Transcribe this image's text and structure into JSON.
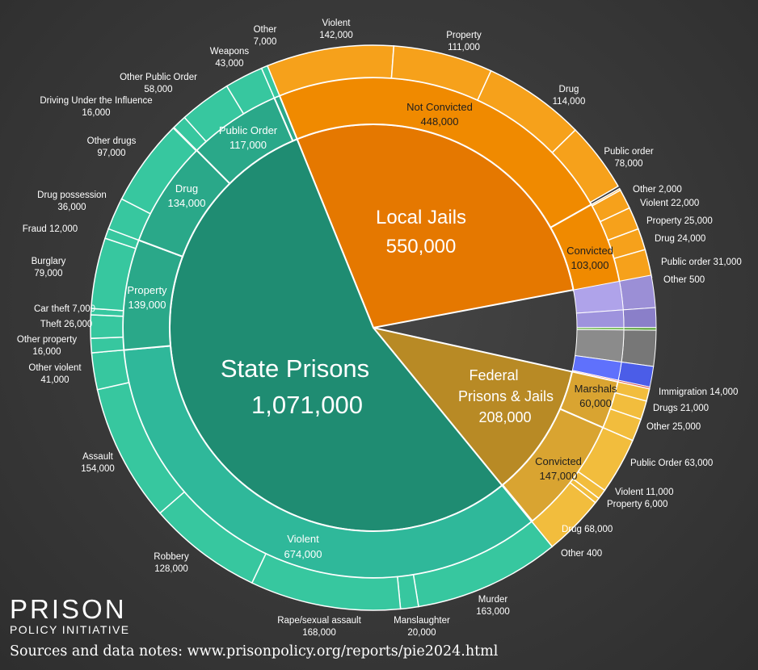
{
  "chart_data": {
    "type": "pie",
    "center": [
      {
        "label": "State Prisons",
        "value": "1,071,000"
      },
      {
        "label": "Local Jails",
        "value": "550,000"
      },
      {
        "label": "Federal Prisons & Jails",
        "value": "208,000"
      }
    ],
    "slices": [
      {
        "name": "State Prisons",
        "display": "1,071,000",
        "value": 1071000,
        "color": "#1f8c72",
        "mid": [
          {
            "label": "Violent",
            "display": "674,000",
            "value": 674000,
            "color": "#2fb89a",
            "outer": [
              {
                "label": "Murder",
                "display": "163,000",
                "value": 163000
              },
              {
                "label": "Manslaughter",
                "display": "20,000",
                "value": 20000
              },
              {
                "label": "Rape/sexual assault",
                "display": "168,000",
                "value": 168000
              },
              {
                "label": "Robbery",
                "display": "128,000",
                "value": 128000
              },
              {
                "label": "Assault",
                "display": "154,000",
                "value": 154000
              },
              {
                "label": "Other violent",
                "display": "41,000",
                "value": 41000
              }
            ]
          },
          {
            "label": "Property",
            "display": "139,000",
            "value": 139000,
            "color": "#2aa889",
            "outer": [
              {
                "label": "Other property",
                "display": "16,000",
                "value": 16000
              },
              {
                "label": "Theft",
                "display": "26,000",
                "value": 26000
              },
              {
                "label": "Car theft",
                "display": "7,000",
                "value": 7000
              },
              {
                "label": "Burglary",
                "display": "79,000",
                "value": 79000
              },
              {
                "label": "Fraud",
                "display": "12,000",
                "value": 12000
              }
            ]
          },
          {
            "label": "Drug",
            "display": "134,000",
            "value": 134000,
            "color": "#2aa889",
            "outer": [
              {
                "label": "Drug possession",
                "display": "36,000",
                "value": 36000
              },
              {
                "label": "Other drugs",
                "display": "97,000",
                "value": 97000
              }
            ]
          },
          {
            "label": "Public Order",
            "display": "117,000",
            "value": 117000,
            "color": "#2aa889",
            "outer": [
              {
                "label": "Driving Under the Influence",
                "display": "16,000",
                "value": 16000
              },
              {
                "label": "Other Public Order",
                "display": "58,000",
                "value": 58000
              },
              {
                "label": "Weapons",
                "display": "43,000",
                "value": 43000
              }
            ]
          },
          {
            "label": "Other",
            "display": "7,000",
            "value": 7000,
            "color": "#2aa889",
            "outer": [
              {
                "label": "Other",
                "display": "7,000",
                "value": 7000
              }
            ]
          }
        ]
      },
      {
        "name": "Local Jails",
        "display": "550,000",
        "value": 550000,
        "color": "#e57800",
        "mid": [
          {
            "label": "Not Convicted",
            "display": "448,000",
            "value": 448000,
            "color": "#f08a00",
            "outer": [
              {
                "label": "Violent",
                "display": "142,000",
                "value": 142000
              },
              {
                "label": "Property",
                "display": "111,000",
                "value": 111000
              },
              {
                "label": "Drug",
                "display": "114,000",
                "value": 114000
              },
              {
                "label": "Public order",
                "display": "78,000",
                "value": 78000
              }
            ]
          },
          {
            "label": "Convicted",
            "display": "103,000",
            "value": 103000,
            "color": "#f08a00",
            "outer": [
              {
                "label": "Other",
                "display": "2,000",
                "value": 2000
              },
              {
                "label": "Violent",
                "display": "22,000",
                "value": 22000
              },
              {
                "label": "Property",
                "display": "25,000",
                "value": 25000
              },
              {
                "label": "Drug",
                "display": "24,000",
                "value": 24000
              },
              {
                "label": "Public order",
                "display": "31,000",
                "value": 31000
              },
              {
                "label": "Other",
                "display": "500",
                "value": 500
              }
            ]
          }
        ]
      },
      {
        "name": "Federal Prisons & Jails",
        "display": "208,000",
        "value": 208000,
        "color": "#b88a25",
        "mid": [
          {
            "label": "Marshals",
            "display": "60,000",
            "value": 60000,
            "color": "#d9a431",
            "outer": [
              {
                "label": "Immigration",
                "display": "14,000",
                "value": 14000
              },
              {
                "label": "Drugs",
                "display": "21,000",
                "value": 21000
              },
              {
                "label": "Other",
                "display": "25,000",
                "value": 25000
              }
            ]
          },
          {
            "label": "Convicted",
            "display": "147,000",
            "value": 147000,
            "color": "#d9a431",
            "outer": [
              {
                "label": "Public Order",
                "display": "63,000",
                "value": 63000
              },
              {
                "label": "Violent",
                "display": "11,000",
                "value": 11000
              },
              {
                "label": "Property",
                "display": "6,000",
                "value": 6000
              },
              {
                "label": "Drug",
                "display": "68,000",
                "value": 68000
              },
              {
                "label": "Other",
                "display": "400",
                "value": 400
              }
            ]
          }
        ]
      }
    ]
  },
  "brand": {
    "line1": "PRISON",
    "line2": "POLICY INITIATIVE"
  },
  "source_note": "Sources and data notes: www.prisonpolicy.org/reports/pie2024.html"
}
